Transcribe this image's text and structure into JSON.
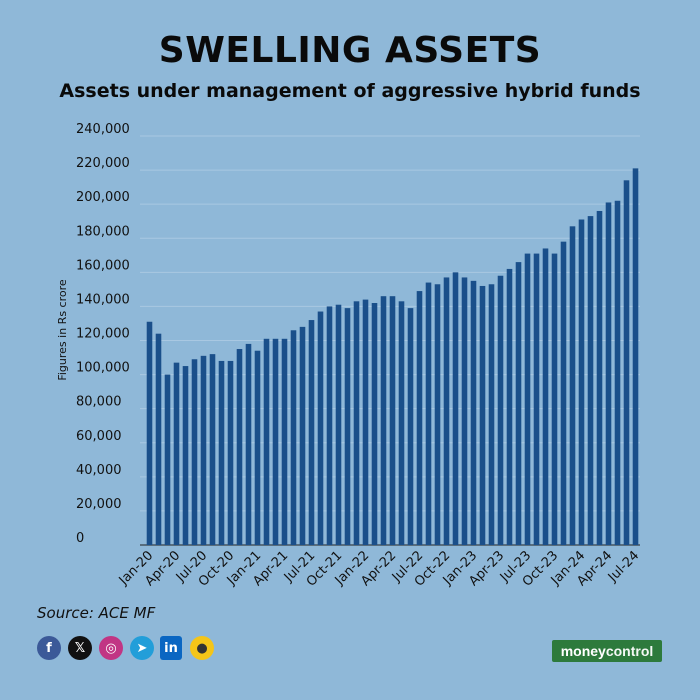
{
  "header": {
    "title": "SWELLING ASSETS",
    "subtitle": "Assets under management of aggressive hybrid funds"
  },
  "footer": {
    "source": "Source: ACE MF",
    "brand_part1": "money",
    "brand_part2": "control",
    "social_icons": [
      "facebook-icon",
      "x-icon",
      "instagram-icon",
      "telegram-icon",
      "linkedin-icon",
      "koo-icon"
    ]
  },
  "colors": {
    "background": "#8fb8d8",
    "bar": "#1a4f8a",
    "grid": "#a9c8e2",
    "brand": "#2d7a3c"
  },
  "chart_data": {
    "type": "bar",
    "title": "SWELLING ASSETS",
    "subtitle": "Assets under management of aggressive hybrid funds",
    "ylabel": "Figures in Rs crore",
    "xlabel": "",
    "ylim": [
      0,
      240000
    ],
    "yticks": [
      0,
      20000,
      40000,
      60000,
      80000,
      100000,
      120000,
      140000,
      160000,
      180000,
      200000,
      220000,
      240000
    ],
    "ytick_labels": [
      "0",
      "20,000",
      "40,000",
      "60,000",
      "80,000",
      "100,000",
      "120,000",
      "140,000",
      "160,000",
      "180,000",
      "200,000",
      "220,000",
      "240,000"
    ],
    "grid": true,
    "categories": [
      "Jan-20",
      "Feb-20",
      "Mar-20",
      "Apr-20",
      "May-20",
      "Jun-20",
      "Jul-20",
      "Aug-20",
      "Sep-20",
      "Oct-20",
      "Nov-20",
      "Dec-20",
      "Jan-21",
      "Feb-21",
      "Mar-21",
      "Apr-21",
      "May-21",
      "Jun-21",
      "Jul-21",
      "Aug-21",
      "Sep-21",
      "Oct-21",
      "Nov-21",
      "Dec-21",
      "Jan-22",
      "Feb-22",
      "Mar-22",
      "Apr-22",
      "May-22",
      "Jun-22",
      "Jul-22",
      "Aug-22",
      "Sep-22",
      "Oct-22",
      "Nov-22",
      "Dec-22",
      "Jan-23",
      "Feb-23",
      "Mar-23",
      "Apr-23",
      "May-23",
      "Jun-23",
      "Jul-23",
      "Aug-23",
      "Sep-23",
      "Oct-23",
      "Nov-23",
      "Dec-23",
      "Jan-24",
      "Feb-24",
      "Mar-24",
      "Apr-24",
      "May-24",
      "Jun-24",
      "Jul-24"
    ],
    "x_tick_labels": [
      "Jan-20",
      "Apr-20",
      "Jul-20",
      "Oct-20",
      "Jan-21",
      "Apr-21",
      "Jul-21",
      "Oct-21",
      "Jan-22",
      "Apr-22",
      "Jul-22",
      "Oct-22",
      "Jan-23",
      "Apr-23",
      "Jul-23",
      "Oct-23",
      "Jan-24",
      "Apr-24",
      "Jul-24"
    ],
    "values": [
      131000,
      124000,
      100000,
      107000,
      105000,
      109000,
      111000,
      112000,
      108000,
      108000,
      115000,
      118000,
      114000,
      121000,
      121000,
      121000,
      126000,
      128000,
      132000,
      137000,
      140000,
      141000,
      139000,
      143000,
      144000,
      142000,
      146000,
      146000,
      143000,
      139000,
      149000,
      154000,
      153000,
      157000,
      160000,
      157000,
      155000,
      152000,
      153000,
      158000,
      162000,
      166000,
      171000,
      171000,
      174000,
      171000,
      178000,
      187000,
      191000,
      193000,
      196000,
      201000,
      202000,
      214000,
      221000
    ]
  }
}
